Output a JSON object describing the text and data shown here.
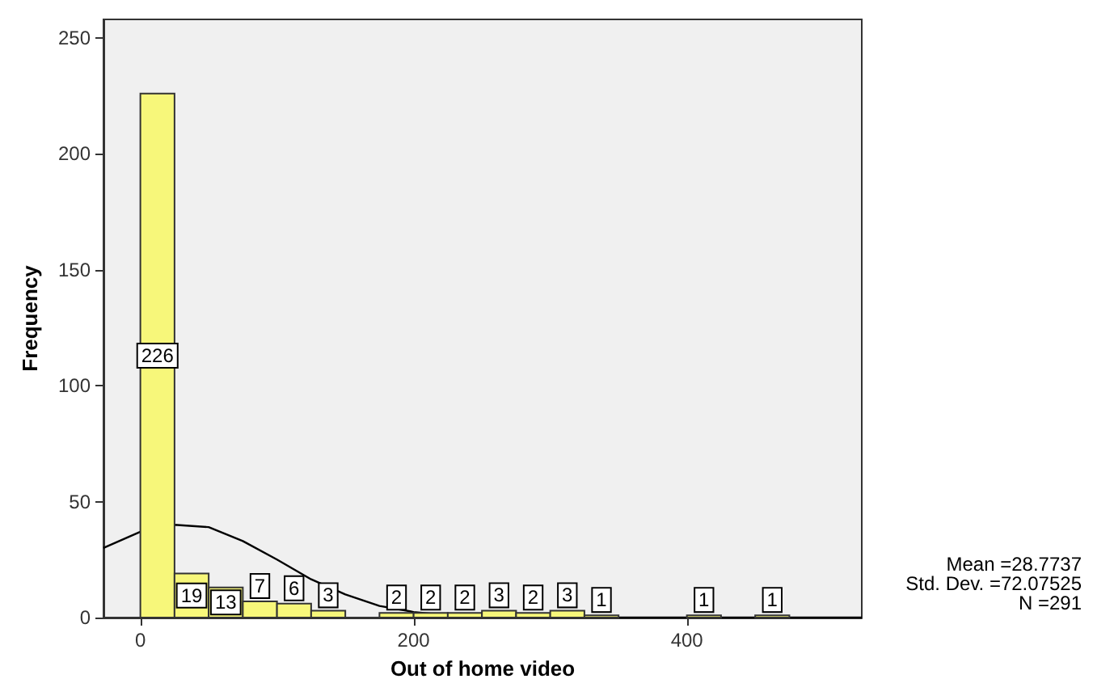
{
  "chart_data": {
    "type": "histogram",
    "xlabel": "Out of home video",
    "ylabel": "Frequency",
    "bins": [
      0,
      25,
      50,
      75,
      100,
      125,
      150,
      175,
      200,
      225,
      250,
      275,
      300,
      325,
      350,
      375,
      400,
      425,
      450,
      475
    ],
    "values": [
      226,
      19,
      13,
      7,
      6,
      3,
      0,
      2,
      2,
      2,
      3,
      2,
      3,
      1,
      0,
      0,
      1,
      0,
      1
    ],
    "value_labels": [
      "226",
      "19",
      "13",
      "7",
      "6",
      "3",
      null,
      "2",
      "2",
      "2",
      "3",
      "2",
      "3",
      "1",
      null,
      null,
      "1",
      null,
      "1"
    ],
    "color": "#f7f77a",
    "series": [
      {
        "type": "line",
        "color": "#000000",
        "x": [
          -27,
          0,
          25,
          50,
          75,
          100,
          125,
          150,
          175,
          200,
          225,
          250,
          275,
          300,
          350,
          400,
          450,
          528
        ],
        "values": [
          30,
          37,
          40,
          39,
          33,
          25,
          16.5,
          10,
          5,
          2.4,
          1,
          0.4,
          0.1,
          0,
          0,
          0,
          0,
          0
        ]
      }
    ],
    "xlim": [
      -27,
      528
    ],
    "xticks": [
      0,
      200,
      400
    ],
    "ylim": [
      0,
      258
    ],
    "yticks": [
      0,
      50,
      100,
      150,
      200,
      250
    ],
    "grid": false,
    "annotations": [
      "Mean =28.7737",
      "Std. Dev. =72.07525",
      "N =291"
    ]
  }
}
